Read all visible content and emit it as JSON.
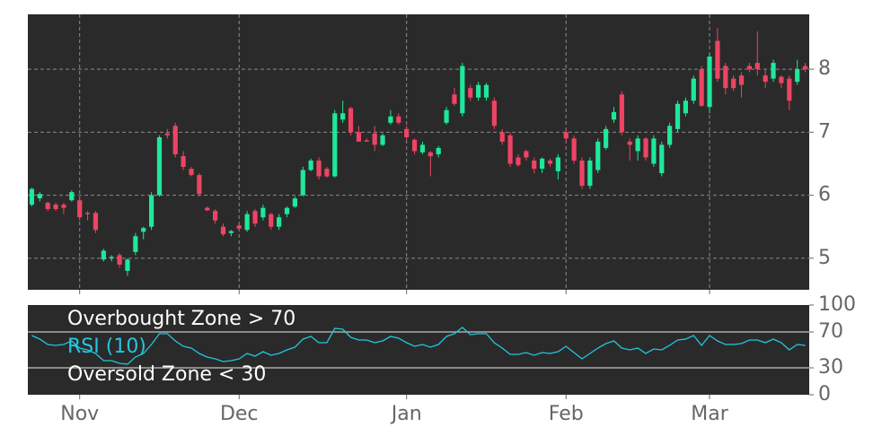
{
  "chart_data": [
    {
      "type": "candlestick",
      "up_color": "#1ee89a",
      "down_color": "#ee4463",
      "ylim": [
        4.5,
        8.87
      ],
      "yticks": [
        5,
        6,
        7,
        8
      ],
      "grid": true,
      "open": [
        5.85,
        5.95,
        5.88,
        5.85,
        5.85,
        5.92,
        5.92,
        5.72,
        5.72,
        4.98,
        5.0,
        5.05,
        4.8,
        5.1,
        5.42,
        5.5,
        6.0,
        6.98,
        7.1,
        6.62,
        6.42,
        6.32,
        5.8,
        5.75,
        5.5,
        5.4,
        5.52,
        5.45,
        5.75,
        5.65,
        5.7,
        5.5,
        5.7,
        5.82,
        6.0,
        6.4,
        6.55,
        6.42,
        6.3,
        7.2,
        7.38,
        7.0,
        6.87,
        6.98,
        6.8,
        7.15,
        7.25,
        7.05,
        6.88,
        6.68,
        6.68,
        6.65,
        7.15,
        7.6,
        7.3,
        7.7,
        7.55,
        7.55,
        7.5,
        7.0,
        6.95,
        6.6,
        6.7,
        6.55,
        6.42,
        6.55,
        6.38,
        7.0,
        6.9,
        6.55,
        6.15,
        6.4,
        6.75,
        7.2,
        7.6,
        6.85,
        6.7,
        6.9,
        6.5,
        6.35,
        6.8,
        7.05,
        7.3,
        7.5,
        8.0,
        7.4,
        8.45,
        8.05,
        7.85,
        7.9,
        8.05,
        8.1,
        7.9,
        7.85,
        7.88,
        7.85,
        7.8,
        8.05
      ],
      "high": [
        6.12,
        6.05,
        5.9,
        5.88,
        5.88,
        6.08,
        5.95,
        5.75,
        5.75,
        5.15,
        5.05,
        5.08,
        5.0,
        5.4,
        5.5,
        6.05,
        6.95,
        7.05,
        7.15,
        6.7,
        6.45,
        6.35,
        5.82,
        5.78,
        5.55,
        5.45,
        5.55,
        5.75,
        5.78,
        5.85,
        5.72,
        5.7,
        5.82,
        5.98,
        6.45,
        6.58,
        6.6,
        6.45,
        7.35,
        7.5,
        7.4,
        7.1,
        6.9,
        7.1,
        6.98,
        7.35,
        7.3,
        7.1,
        6.9,
        6.85,
        6.7,
        6.78,
        7.4,
        7.7,
        8.1,
        7.75,
        7.8,
        7.78,
        7.55,
        7.05,
        7.0,
        6.65,
        6.72,
        6.6,
        6.6,
        6.58,
        6.65,
        7.05,
        6.95,
        6.6,
        6.6,
        6.9,
        7.1,
        7.4,
        7.65,
        6.9,
        6.95,
        6.92,
        6.95,
        6.85,
        7.15,
        7.5,
        7.55,
        7.9,
        8.05,
        8.25,
        8.65,
        8.1,
        7.9,
        7.95,
        8.1,
        8.6,
        8.0,
        8.15,
        7.9,
        7.9,
        8.15,
        8.1
      ],
      "low": [
        5.82,
        5.9,
        5.75,
        5.75,
        5.7,
        5.9,
        5.6,
        5.6,
        5.4,
        4.95,
        4.95,
        4.85,
        4.72,
        5.05,
        5.3,
        5.45,
        5.98,
        6.9,
        6.6,
        6.4,
        6.3,
        5.98,
        5.75,
        5.55,
        5.35,
        5.35,
        5.45,
        5.42,
        5.5,
        5.6,
        5.45,
        5.45,
        5.65,
        5.8,
        5.98,
        6.38,
        6.25,
        6.28,
        6.28,
        7.15,
        6.95,
        6.85,
        6.85,
        6.7,
        6.78,
        7.12,
        7.12,
        6.88,
        6.65,
        6.65,
        6.3,
        6.6,
        7.12,
        7.42,
        7.25,
        7.5,
        7.5,
        7.5,
        7.05,
        6.8,
        6.45,
        6.45,
        6.55,
        6.35,
        6.35,
        6.45,
        6.25,
        6.85,
        6.5,
        6.1,
        6.1,
        6.35,
        6.72,
        7.15,
        6.95,
        6.55,
        6.55,
        6.55,
        6.45,
        6.3,
        6.75,
        7.0,
        7.25,
        7.45,
        7.4,
        7.3,
        7.8,
        7.6,
        7.65,
        7.55,
        7.95,
        7.9,
        7.7,
        7.8,
        7.7,
        7.35,
        7.75,
        7.95
      ],
      "close": [
        6.1,
        6.02,
        5.78,
        5.78,
        5.8,
        6.05,
        5.65,
        5.7,
        5.45,
        5.12,
        5.02,
        4.9,
        4.98,
        5.35,
        5.48,
        6.0,
        6.92,
        6.95,
        6.65,
        6.45,
        6.32,
        6.02,
        5.76,
        5.6,
        5.38,
        5.43,
        5.47,
        5.7,
        5.55,
        5.8,
        5.5,
        5.65,
        5.8,
        5.95,
        6.4,
        6.55,
        6.3,
        6.3,
        7.3,
        7.3,
        7.0,
        6.85,
        6.85,
        6.8,
        6.95,
        7.25,
        7.15,
        6.92,
        6.7,
        6.8,
        6.62,
        6.75,
        7.35,
        7.45,
        8.05,
        7.55,
        7.75,
        7.75,
        7.1,
        6.85,
        6.5,
        6.48,
        6.6,
        6.42,
        6.58,
        6.5,
        6.6,
        6.9,
        6.55,
        6.15,
        6.55,
        6.85,
        7.05,
        7.32,
        7.0,
        6.8,
        6.9,
        6.6,
        6.9,
        6.8,
        7.1,
        7.45,
        7.5,
        7.85,
        7.42,
        8.2,
        7.85,
        7.7,
        7.7,
        7.75,
        8.0,
        8.0,
        7.8,
        8.1,
        7.78,
        7.5,
        8.0,
        8.0
      ]
    },
    {
      "type": "line",
      "ylim": [
        0,
        100
      ],
      "yticks": [
        0,
        30,
        70,
        100
      ],
      "categories": [
        null,
        null,
        null,
        null,
        null,
        null,
        "Nov",
        null,
        null,
        null,
        null,
        null,
        null,
        null,
        null,
        null,
        null,
        null,
        null,
        null,
        null,
        null,
        null,
        null,
        null,
        null,
        "Dec",
        null,
        null,
        null,
        null,
        null,
        null,
        null,
        null,
        null,
        null,
        null,
        null,
        null,
        null,
        null,
        null,
        null,
        null,
        null,
        null,
        "Jan",
        null,
        null,
        null,
        null,
        null,
        null,
        null,
        null,
        null,
        null,
        null,
        null,
        null,
        null,
        null,
        null,
        null,
        null,
        null,
        "Feb",
        null,
        null,
        null,
        null,
        null,
        null,
        null,
        null,
        null,
        null,
        null,
        null,
        null,
        null,
        null,
        null,
        null,
        "Mar",
        null,
        null,
        null,
        null,
        null,
        null,
        null,
        null,
        null,
        null,
        null,
        null
      ],
      "series": [
        {
          "name": "RSI (10)",
          "color": "#22c6e0",
          "values": [
            66,
            62,
            56,
            55,
            56,
            60,
            52,
            50,
            46,
            38,
            38,
            35,
            34,
            42,
            46,
            56,
            68,
            68,
            60,
            54,
            52,
            46,
            42,
            40,
            37,
            38,
            40,
            46,
            43,
            48,
            44,
            46,
            50,
            53,
            62,
            65,
            58,
            58,
            74,
            73,
            64,
            61,
            61,
            58,
            60,
            65,
            63,
            58,
            54,
            56,
            53,
            56,
            65,
            68,
            75,
            67,
            68,
            68,
            58,
            52,
            45,
            45,
            47,
            44,
            47,
            46,
            48,
            54,
            47,
            40,
            46,
            52,
            57,
            60,
            52,
            50,
            52,
            46,
            51,
            50,
            55,
            61,
            62,
            66,
            55,
            66,
            60,
            56,
            56,
            57,
            61,
            61,
            58,
            62,
            58,
            50,
            56,
            55
          ]
        }
      ],
      "hlines": [
        {
          "name": "Overbought Zone > 70",
          "value": 70,
          "color": "#aaaaaa"
        },
        {
          "name": "Oversold Zone < 30",
          "value": 30,
          "color": "#aaaaaa"
        }
      ]
    }
  ]
}
